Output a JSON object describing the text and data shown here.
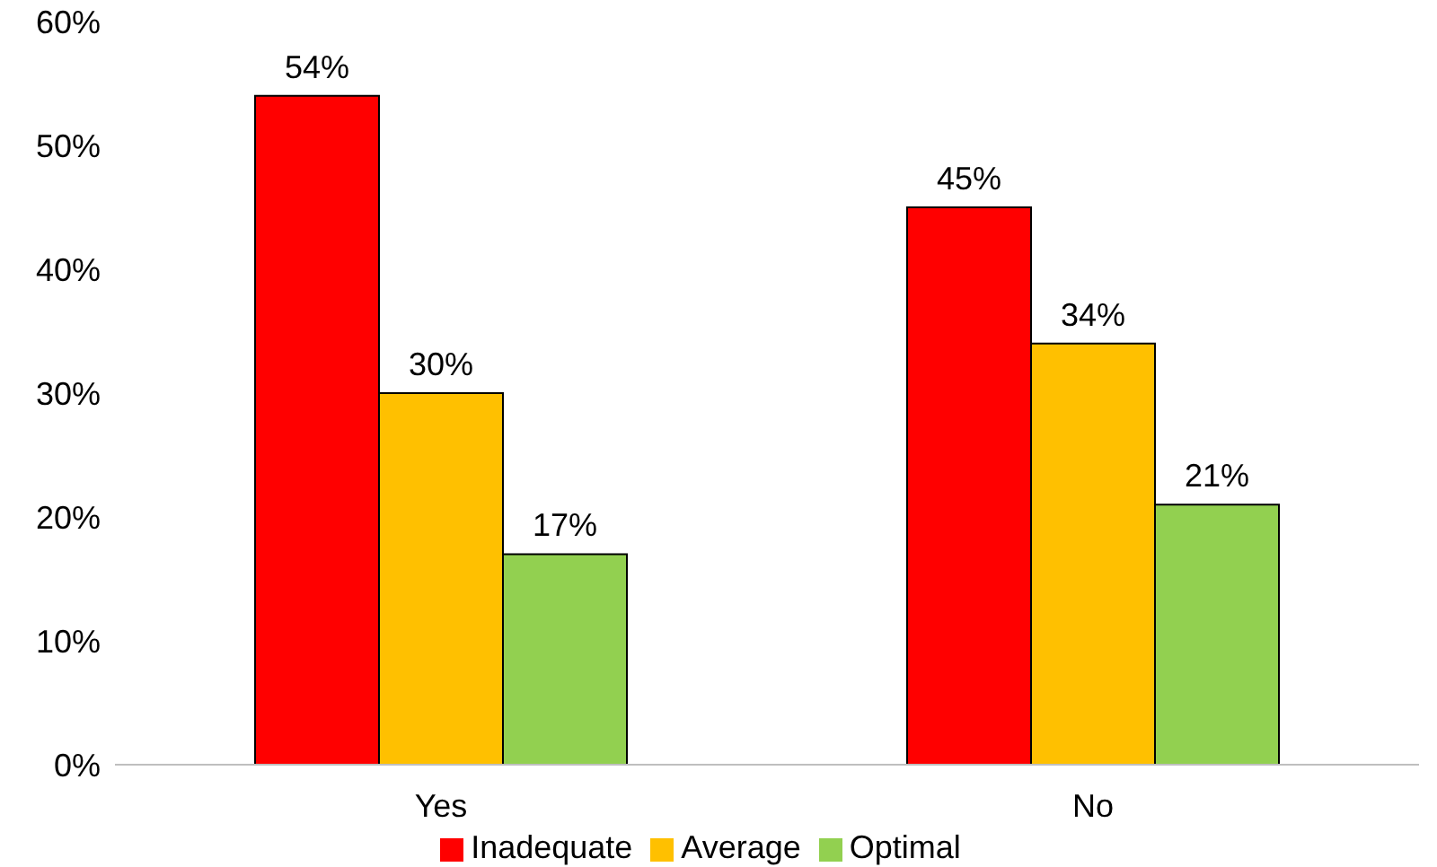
{
  "chart_data": {
    "type": "bar",
    "categories": [
      "Yes",
      "No"
    ],
    "series": [
      {
        "name": "Inadequate",
        "color": "#ff0000",
        "values": [
          54,
          45
        ],
        "value_labels": [
          "54%",
          "45%"
        ]
      },
      {
        "name": "Average",
        "color": "#ffc000",
        "values": [
          30,
          34
        ],
        "value_labels": [
          "30%",
          "34%"
        ]
      },
      {
        "name": "Optimal",
        "color": "#92d050",
        "values": [
          17,
          21
        ],
        "value_labels": [
          "17%",
          "21%"
        ]
      }
    ],
    "ylim": [
      0,
      60
    ],
    "yticks": [
      {
        "value": 0,
        "label": "0%"
      },
      {
        "value": 10,
        "label": "10%"
      },
      {
        "value": 20,
        "label": "20%"
      },
      {
        "value": 30,
        "label": "30%"
      },
      {
        "value": 40,
        "label": "40%"
      },
      {
        "value": 50,
        "label": "50%"
      },
      {
        "value": 60,
        "label": "60%"
      }
    ],
    "legend": "bottom"
  }
}
